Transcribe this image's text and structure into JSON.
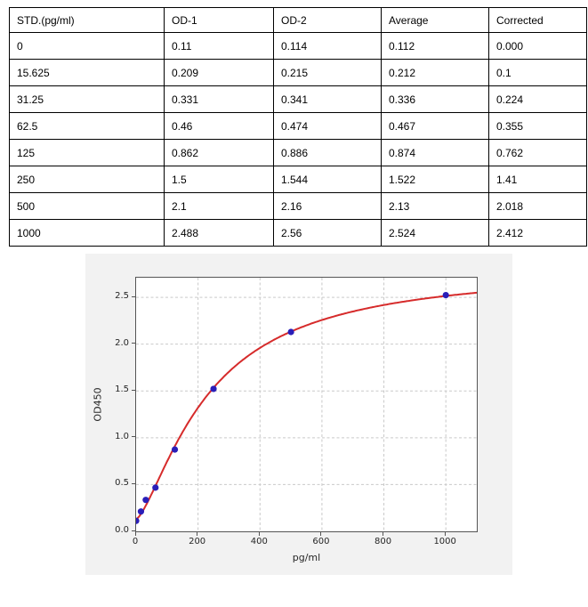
{
  "table": {
    "headers": [
      "STD.(pg/ml)",
      "OD-1",
      "OD-2",
      "Average",
      "Corrected"
    ],
    "rows": [
      [
        "0",
        "0.11",
        "0.114",
        "0.112",
        "0.000"
      ],
      [
        "15.625",
        "0.209",
        "0.215",
        "0.212",
        "0.1"
      ],
      [
        "31.25",
        "0.331",
        "0.341",
        "0.336",
        "0.224"
      ],
      [
        "62.5",
        "0.46",
        "0.474",
        "0.467",
        "0.355"
      ],
      [
        "125",
        "0.862",
        "0.886",
        "0.874",
        "0.762"
      ],
      [
        "250",
        "1.5",
        "1.544",
        "1.522",
        "1.41"
      ],
      [
        "500",
        "2.1",
        "2.16",
        "2.13",
        "2.018"
      ],
      [
        "1000",
        "2.488",
        "2.56",
        "2.524",
        "2.412"
      ]
    ]
  },
  "chart_data": {
    "type": "scatter",
    "title": "",
    "xlabel": "pg/ml",
    "ylabel": "OD450",
    "xlim": [
      0,
      1100
    ],
    "ylim": [
      0,
      2.71
    ],
    "grid": true,
    "legend": "none",
    "x_tick_labels": [
      "0",
      "200",
      "400",
      "600",
      "800",
      "1000"
    ],
    "y_tick_labels": [
      "0.0",
      "0.5",
      "1.0",
      "1.5",
      "2.0",
      "2.5"
    ],
    "points": {
      "x": [
        0,
        15.625,
        31.25,
        62.5,
        125,
        250,
        500,
        1000
      ],
      "y": [
        0.112,
        0.212,
        0.336,
        0.467,
        0.874,
        1.522,
        2.13,
        2.524
      ]
    },
    "fit_curve": {
      "type": "4PL",
      "formula": "y = d + (a - d) / (1 + (x/c)^b)",
      "a": 0.13,
      "b": 1.42,
      "c": 235,
      "d": 2.82,
      "x_range": [
        0,
        1100
      ]
    },
    "colors": {
      "curve": "#d62b2b",
      "marker": "#2a1eb8",
      "figure_bg": "#f2f2f2",
      "plot_bg": "#ffffff",
      "grid": "#c9c9c9",
      "spine": "#555555",
      "tick_text": "#262626"
    }
  }
}
